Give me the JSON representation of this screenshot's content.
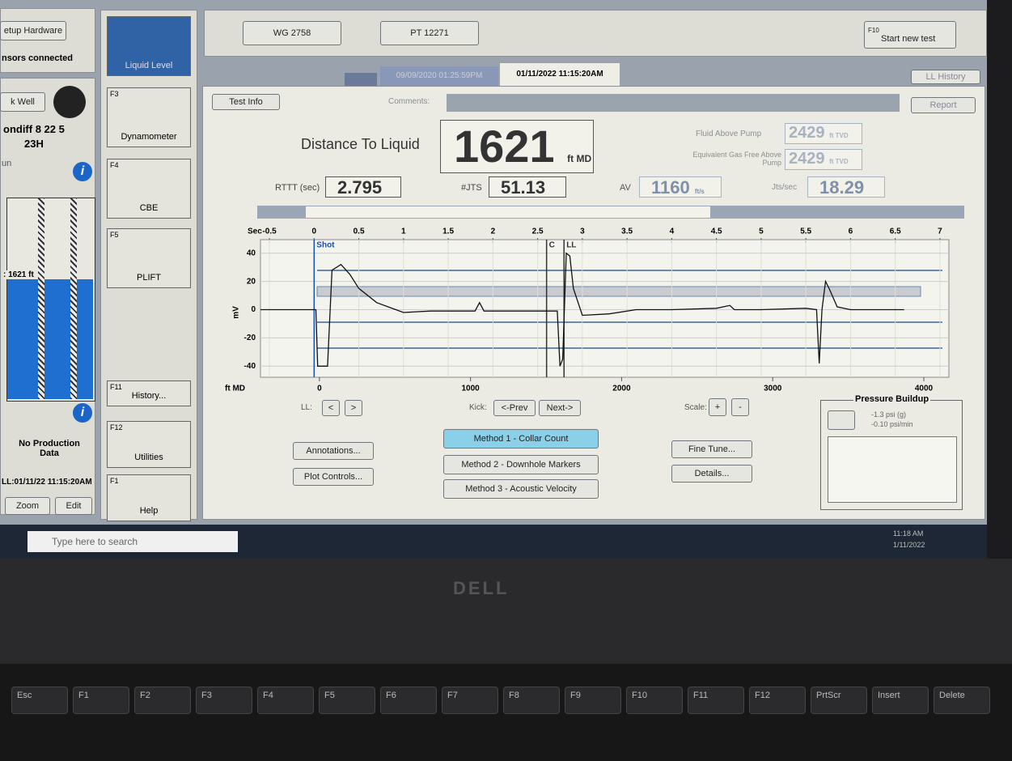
{
  "left_panel": {
    "setup_button": "etup Hardware",
    "sensors": "nsors connected",
    "well_button": "k Well",
    "well_name": "ondiff 8 22 5",
    "well_sub": "23H",
    "run_label": "un",
    "depth_label": ": 1621 ft",
    "no_production": "No Production Data",
    "ll_timestamp": "LL:01/11/22 11:15:20AM",
    "zoom": "Zoom",
    "edit": "Edit"
  },
  "tools": [
    {
      "label": "Liquid Level"
    },
    {
      "key": "F3",
      "label": "Dynamometer"
    },
    {
      "key": "F4",
      "label": "CBE"
    },
    {
      "key": "F5",
      "label": "PLIFT"
    },
    {
      "key": "F11",
      "label": "History..."
    },
    {
      "key": "F12",
      "label": "Utilities"
    },
    {
      "key": "F1",
      "label": "Help"
    }
  ],
  "toolbar": {
    "sensor1": "WG 2758",
    "sensor2": "PT 12271",
    "start_key": "F10",
    "start_new_test": "Start new test"
  },
  "tabs": [
    "09/09/2020 01:25:59PM",
    "01/11/2022 11:15:20AM"
  ],
  "history_button": "LL History",
  "header": {
    "test_info": "Test Info",
    "comments_label": "Comments:",
    "report": "Report"
  },
  "readouts": {
    "distance_label": "Distance To Liquid",
    "distance_value": 1621,
    "distance_unit": "ft MD",
    "fluid_above_pump_label": "Fluid Above Pump",
    "fluid_above_pump": 2429,
    "fluid_unit": "ft TVD",
    "equivalent_label": "Equivalent Gas Free Above Pump",
    "equivalent": 2429,
    "equivalent_unit": "ft TVD",
    "rttt_label": "RTTT (sec)",
    "rttt": 2.795,
    "jts_label": "#JTS",
    "jts": 51.13,
    "av_label": "AV",
    "av": 1160,
    "av_unit": "ft/s",
    "jts_sec_label": "Jts/sec",
    "jts_sec": 18.29
  },
  "chart": {
    "x_label": "Sec",
    "y_label": "mV",
    "depth_label": "ft MD",
    "xlim": [
      -0.6,
      7.1
    ],
    "xticks": [
      -0.5,
      0,
      0.5,
      1,
      1.5,
      2,
      2.5,
      3,
      3.5,
      4,
      4.5,
      5,
      5.5,
      6,
      6.5,
      7
    ],
    "ylim": [
      -45,
      45
    ],
    "yticks": [
      40,
      20,
      0,
      -20,
      -40
    ],
    "depth_lim": [
      -390,
      4166
    ],
    "depth_ticks": [
      0,
      1000,
      2000,
      3000,
      4000
    ],
    "markers": [
      {
        "label": "Shot",
        "x": 0
      },
      {
        "label": "C",
        "x": 2.6
      },
      {
        "label": "LL",
        "x": 2.795
      }
    ],
    "trace": {
      "x": [
        -0.6,
        0.02,
        0.04,
        0.15,
        0.2,
        0.3,
        0.4,
        0.5,
        0.7,
        1.0,
        1.3,
        1.8,
        1.85,
        1.9,
        2.3,
        2.72,
        2.75,
        2.78,
        2.82,
        2.86,
        2.9,
        3.0,
        3.3,
        3.6,
        4.0,
        4.5,
        4.65,
        4.7,
        5.0,
        5.5,
        5.62,
        5.65,
        5.68,
        5.72,
        5.76,
        5.85,
        6.0,
        6.6
      ],
      "y": [
        0,
        0,
        -40,
        -40,
        28,
        32,
        25,
        15,
        5,
        -2,
        -1,
        -1,
        5,
        -1,
        -1,
        -1,
        -40,
        -35,
        40,
        38,
        15,
        -4,
        -3,
        0,
        0,
        1,
        3,
        0,
        0,
        1,
        0,
        -38,
        0,
        20,
        15,
        2,
        0,
        0
      ]
    }
  },
  "controls": {
    "ll_label": "LL:",
    "prev": "<",
    "next": ">",
    "kick_label": "Kick:",
    "kick_prev": "<-Prev",
    "kick_next": "Next->",
    "scale_label": "Scale:",
    "scale_plus": "+",
    "scale_minus": "-",
    "annotations": "Annotations...",
    "plot_controls": "Plot Controls...",
    "methods": [
      "Method 1 - Collar Count",
      "Method 2 - Downhole Markers",
      "Method 3 - Acoustic Velocity"
    ],
    "fine_tune": "Fine Tune...",
    "details": "Details..."
  },
  "pressure_buildup": {
    "title": "Pressure Buildup",
    "psi": "-1.3 psi (g)",
    "rate": "-0.10 psi/min"
  },
  "taskbar": {
    "search": "Type here to search",
    "time": "11:18 AM",
    "date": "1/11/2022"
  },
  "laptop": {
    "brand": "DELL",
    "keys": [
      "Esc",
      "F1",
      "F2",
      "F3",
      "F4",
      "F5",
      "F6",
      "F7",
      "F8",
      "F9",
      "F10",
      "F11",
      "F12",
      "PrtScr",
      "Insert",
      "Delete"
    ]
  }
}
